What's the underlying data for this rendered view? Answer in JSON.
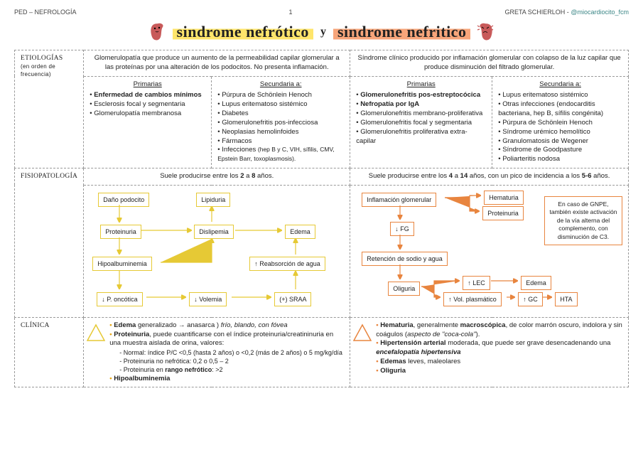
{
  "header": {
    "left": "PED – NEFROLOGÍA",
    "page": "1",
    "author": "GRETA SCHIERLOH - ",
    "handle": "@miocardiocito_fcm"
  },
  "titles": {
    "nefrotico": "sindrome nefrótico",
    "y": "y",
    "nefritico": "sindrome nefritico"
  },
  "definitions": {
    "nefrotico": "Glomerulopatía que produce un aumento de la permeabilidad capilar glomerular a las proteínas por una alteración de los podocitos. No presenta inflamación.",
    "nefritico": "Síndrome clínico producido por inflamación glomerular con colapso de la luz capilar que produce disminución del filtrado glomerular."
  },
  "rows": {
    "etiologias": "Etiologías",
    "etio_sub": "(en orden de frecuencia)",
    "fisio": "Fisiopatología",
    "clinica": "Clínica"
  },
  "etio_headers": {
    "primarias": "Primarias",
    "secundaria": "Secundaria a:"
  },
  "etio": {
    "nefro_prim": [
      "Enfermedad de cambios mínimos",
      "Esclerosis focal y segmentaria",
      "Glomerulopatía membranosa"
    ],
    "nefro_prim_bold": [
      true,
      false,
      false
    ],
    "nefro_sec": [
      "Púrpura de Schönlein Henoch",
      "Lupus eritematoso sistémico",
      "Diabetes",
      "Glomerulonefritis pos-infecciosa",
      "Neoplasias hemolinfoides",
      "Fármacos"
    ],
    "nefro_sec_last": "Infecciones ",
    "nefro_sec_last_small": "(hep B y C, VIH, sífilis, CMV, Epstein Barr, toxoplasmosis).",
    "nefri_prim": [
      "Glomerulonefritis pos-estreptocócica",
      "Nefropatía por IgA",
      "Glomerulonefritis membrano-proliferativa",
      "Glomerulonefritis focal y segmentaria",
      "Glomerulonefritis proliferativa extra-capilar"
    ],
    "nefri_prim_bold": [
      true,
      true,
      false,
      false,
      false
    ],
    "nefri_sec": [
      "Lupus eritematoso sistémico",
      "Otras infecciones (endocarditis bacteriana, hep B, sífilis congénita)",
      "Púrpura de Schönlein Henoch",
      "Síndrome urémico hemolítico",
      "Granulomatosis de Wegener",
      "Síndrome de Goodpasture",
      "Poliarteritis nodosa"
    ]
  },
  "age": {
    "nefrotico": "Suele producirse entre los 2 a 8 años.",
    "nefritico": "Suele producirse entre los 4 a 14 años, con un pico de incidencia a los 5-6 años."
  },
  "fisio_nefrotico": {
    "b1": "Daño podocito",
    "b2": "Lipiduria",
    "b3": "Proteinuria",
    "b4": "Dislipemia",
    "b5": "Edema",
    "b6": "Hipoalbuminemia",
    "b7": "↑ Reabsorción de agua",
    "b8": "↓ P. oncótica",
    "b9": "↓ Volemia",
    "b10": "(+) SRAA"
  },
  "fisio_nefritico": {
    "b1": "Inflamación glomerular",
    "b2": "Hematuria",
    "b3": "Proteinuria",
    "b4": "↓ FG",
    "b5": "Retención de sodio y agua",
    "b6": "Oliguria",
    "b7": "↑ LEC",
    "b8": "Edema",
    "b9": "↑ Vol. plasmático",
    "b10": "↑ GC",
    "b11": "HTA",
    "note": "En caso de GNPE, también existe activación de la vía alterna del complemento, con disminución de C3."
  },
  "clinica": {
    "nefrotico": {
      "l1a": "Edema",
      "l1b": " generalizado → anasarca ) ",
      "l1c": "frío, blando, con fóvea",
      "l2a": "Proteinuria",
      "l2b": ", puede cuantificarse con el índice proteinuria/creatininuria en una muestra aislada de orina, valores:",
      "s1": "Normal: índice P/C <0,5 (hasta 2 años) o <0,2 (más de 2 años) o 5 mg/kg/día",
      "s2": "Proteinuria no nefrótica: 0,2 o 0,5 – 2",
      "s3a": "Proteinuria en ",
      "s3b": "rango nefrótico",
      "s3c": ": >2",
      "l3": "Hipoalbuminemia"
    },
    "nefritico": {
      "l1a": "Hematuria",
      "l1b": ", generalmente ",
      "l1c": "macroscópica",
      "l1d": ", de color marrón oscuro, indolora y sin coágulos (",
      "l1e": "aspecto de \"coca-cola\"",
      "l1f": ").",
      "l2a": "Hipertensión arterial",
      "l2b": " moderada, que puede ser grave desencadenando una ",
      "l2c": "encefalopatía hipertensiva",
      "l3a": "Edemas",
      "l3b": " leves, maleolares",
      "l4": "Oliguria"
    }
  },
  "colors": {
    "yellow": "#e6c935",
    "orange": "#e8853f"
  }
}
